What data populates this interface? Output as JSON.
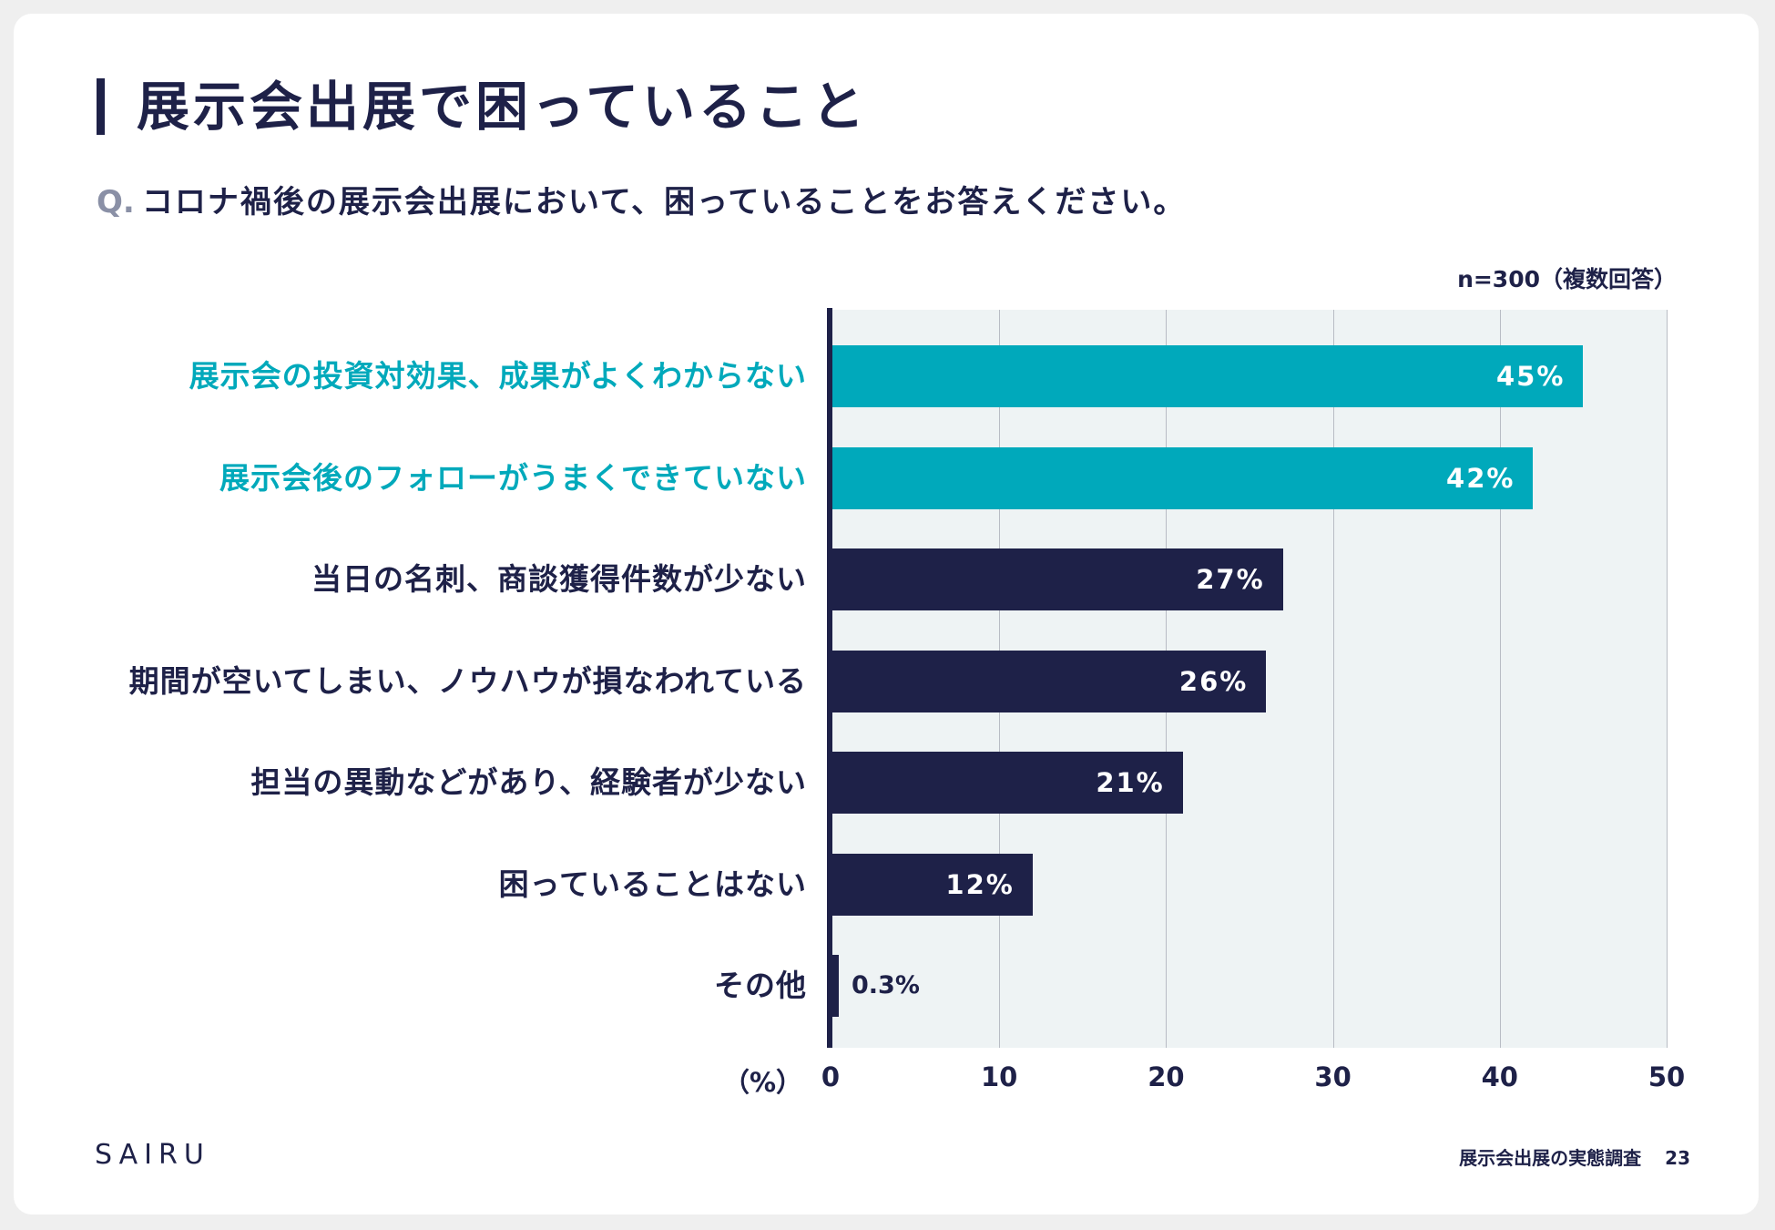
{
  "page": {
    "title": "展示会出展で困っていること",
    "question_prefix": "Q.",
    "question": "コロナ禍後の展示会出展において、困っていることをお答えください。",
    "sample_note": "n=300（複数回答）",
    "logo": "SAIRU",
    "footer_title": "展示会出展の実態調査",
    "page_number": "23"
  },
  "colors": {
    "highlight": "#00a9bb",
    "primary": "#1e2148"
  },
  "chart_data": {
    "type": "bar",
    "orientation": "horizontal",
    "title": "",
    "xlabel": "（%）",
    "ylabel": "",
    "xlim": [
      0,
      50
    ],
    "xticks": [
      0,
      10,
      20,
      30,
      40,
      50
    ],
    "grid": true,
    "categories": [
      "展示会の投資対効果、成果がよくわからない",
      "展示会後のフォローがうまくできていない",
      "当日の名刺、商談獲得件数が少ない",
      "期間が空いてしまい、ノウハウが損なわれている",
      "担当の異動などがあり、経験者が少ない",
      "困っていることはない",
      "その他"
    ],
    "values": [
      45,
      42,
      27,
      26,
      21,
      12,
      0.3
    ],
    "value_labels": [
      "45%",
      "42%",
      "27%",
      "26%",
      "21%",
      "12%",
      "0.3%"
    ],
    "highlighted": [
      true,
      true,
      false,
      false,
      false,
      false,
      false
    ]
  }
}
